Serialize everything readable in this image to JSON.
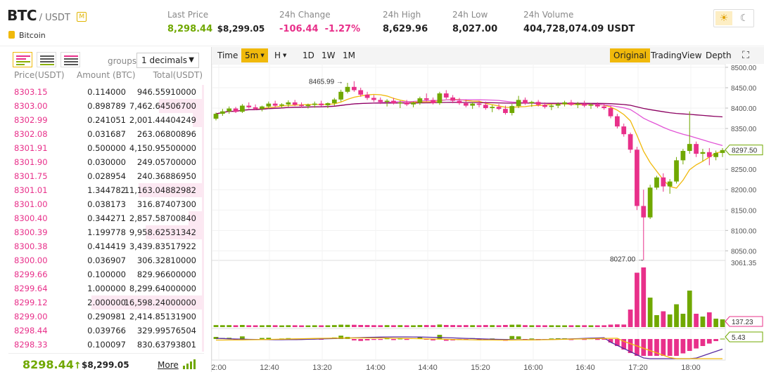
{
  "header": {
    "symbol": "BTC",
    "quote": "/ USDT",
    "margin_badge": "M",
    "coin_name": "Bitcoin",
    "theme_light_icon": "sun-icon",
    "theme_dark_icon": "moon-icon"
  },
  "stats": {
    "last_price_label": "Last Price",
    "last_price": "8,298.44",
    "last_price_usd": "$8,299.05",
    "change_label": "24h Change",
    "change": "-106.44",
    "change_pct": "-1.27%",
    "high_label": "24h High",
    "high": "8,629.96",
    "low_label": "24h Low",
    "low": "8,027.00",
    "volume_label": "24h Volume",
    "volume": "404,728,074.09 USDT"
  },
  "orderbook": {
    "groups_label": "groups",
    "decimals": "1 decimals",
    "headers": {
      "price": "Price(USDT)",
      "amount": "Amount (BTC)",
      "total": "Total(USDT)"
    },
    "asks": [
      {
        "price": "8303.15",
        "amount": "0.114000",
        "total": "946.55910000",
        "depth": 0.02
      },
      {
        "price": "8303.00",
        "amount": "0.898789",
        "total": "7,462.64506700",
        "depth": 0.4
      },
      {
        "price": "8302.99",
        "amount": "0.241051",
        "total": "2,001.44404249",
        "depth": 0.1
      },
      {
        "price": "8302.08",
        "amount": "0.031687",
        "total": "263.06800896",
        "depth": 0.02
      },
      {
        "price": "8301.91",
        "amount": "0.500000",
        "total": "4,150.95500000",
        "depth": 0.02
      },
      {
        "price": "8301.90",
        "amount": "0.030000",
        "total": "249.05700000",
        "depth": 0.02
      },
      {
        "price": "8301.75",
        "amount": "0.028954",
        "total": "240.36886950",
        "depth": 0.02
      },
      {
        "price": "8301.01",
        "amount": "1.344782",
        "total": "11,163.04882982",
        "depth": 0.58
      },
      {
        "price": "8301.00",
        "amount": "0.038173",
        "total": "316.87407300",
        "depth": 0.02
      },
      {
        "price": "8300.40",
        "amount": "0.344271",
        "total": "2,857.58700840",
        "depth": 0.14
      },
      {
        "price": "8300.39",
        "amount": "1.199778",
        "total": "9,958.62531342",
        "depth": 0.52
      },
      {
        "price": "8300.38",
        "amount": "0.414419",
        "total": "3,439.83517922",
        "depth": 0.02
      },
      {
        "price": "8300.00",
        "amount": "0.036907",
        "total": "306.32810000",
        "depth": 0.02
      },
      {
        "price": "8299.66",
        "amount": "0.100000",
        "total": "829.96600000",
        "depth": 0.02
      },
      {
        "price": "8299.64",
        "amount": "1.000000",
        "total": "8,299.64000000",
        "depth": 0.02
      },
      {
        "price": "8299.12",
        "amount": "2.000000",
        "total": "16,598.24000000",
        "depth": 1.0
      },
      {
        "price": "8299.00",
        "amount": "0.290981",
        "total": "2,414.85131900",
        "depth": 0.02
      },
      {
        "price": "8298.44",
        "amount": "0.039766",
        "total": "329.99576504",
        "depth": 0.02
      },
      {
        "price": "8298.33",
        "amount": "0.100097",
        "total": "830.63793801",
        "depth": 0.02
      }
    ],
    "last_price": "8298.44",
    "last_price_usd": "$8,299.05",
    "more_label": "More"
  },
  "chart_toolbar": {
    "time_label": "Time",
    "intervals": [
      "5m",
      "H",
      "1D",
      "1W",
      "1M"
    ],
    "active_interval": "5m",
    "views": [
      "Original",
      "TradingView",
      "Depth"
    ],
    "active_view": "Original"
  },
  "colors": {
    "up": "#70a800",
    "down": "#e8308a",
    "accent": "#f0b90b",
    "ma_short": "#f0b90b",
    "ma_mid": "#e254d6",
    "ma_long": "#8b0060",
    "macd_line": "#5b2ca0"
  },
  "chart_data": {
    "type": "candlestick",
    "x_ticks": [
      "2:00",
      "12:40",
      "13:20",
      "14:00",
      "14:40",
      "15:20",
      "16:00",
      "16:40",
      "17:20",
      "18:00"
    ],
    "y_ticks": [
      "8500.00",
      "8450.00",
      "8400.00",
      "8350.00",
      "8300.00",
      "8250.00",
      "8200.00",
      "8150.00",
      "8100.00",
      "8050.00"
    ],
    "ylim": [
      8030,
      8505
    ],
    "high_annotation": "8465.99",
    "high_value": 8465.99,
    "low_annotation": "8027.00",
    "low_value": 8027.0,
    "current_price_tag": "8297.50",
    "current_price": 8297.5,
    "volume_max_label": "3061.35",
    "volume_ma_tag": "137.23",
    "macd_tag": "5.43"
  }
}
